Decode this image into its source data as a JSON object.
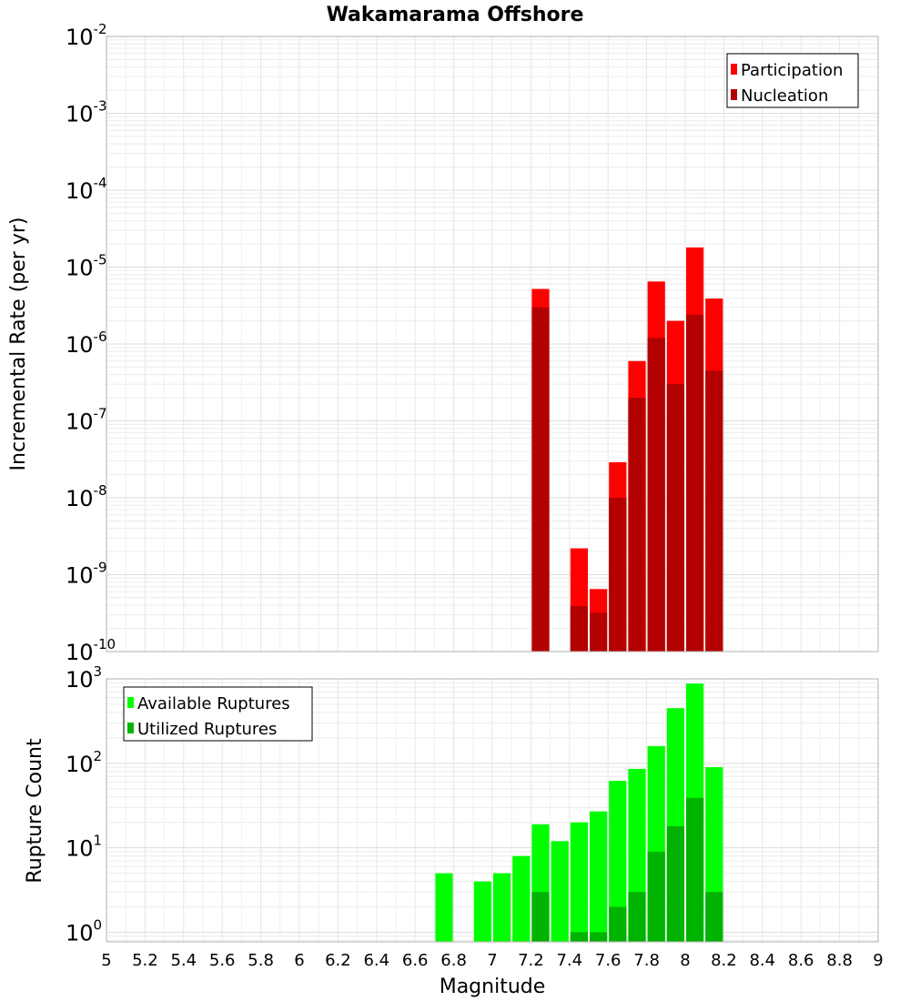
{
  "chart_data": [
    {
      "type": "bar",
      "title": "Wakamarama Offshore",
      "ylabel": "Incremental Rate (per yr)",
      "yscale": "log",
      "ylim": [
        1e-10,
        0.01
      ],
      "xlim": [
        5,
        9
      ],
      "grid": true,
      "legend_position": "top-right",
      "y_tick_labels": [
        {
          "base": "10",
          "exp": "-2"
        },
        {
          "base": "10",
          "exp": "-3"
        },
        {
          "base": "10",
          "exp": "-4"
        },
        {
          "base": "10",
          "exp": "-5"
        },
        {
          "base": "10",
          "exp": "-6"
        },
        {
          "base": "10",
          "exp": "-7"
        },
        {
          "base": "10",
          "exp": "-8"
        },
        {
          "base": "10",
          "exp": "-9"
        },
        {
          "base": "10",
          "exp": "-10"
        }
      ],
      "series": [
        {
          "name": "Participation",
          "color": "#ff0000",
          "x": [
            7.25,
            7.45,
            7.55,
            7.65,
            7.75,
            7.85,
            7.95,
            8.05,
            8.15
          ],
          "values": [
            5.2e-06,
            2.2e-09,
            6.5e-10,
            2.9e-08,
            6e-07,
            6.5e-06,
            2e-06,
            1.8e-05,
            3.9e-06
          ]
        },
        {
          "name": "Nucleation",
          "color": "#b30000",
          "x": [
            7.25,
            7.45,
            7.55,
            7.65,
            7.75,
            7.85,
            7.95,
            8.05,
            8.15
          ],
          "values": [
            3e-06,
            3.9e-10,
            3.2e-10,
            1e-08,
            2e-07,
            1.2e-06,
            3e-07,
            2.4e-06,
            4.5e-07
          ]
        }
      ]
    },
    {
      "type": "bar",
      "xlabel": "Magnitude",
      "ylabel": "Rupture Count",
      "yscale": "log",
      "ylim": [
        0.77,
        1000
      ],
      "xlim": [
        5,
        9
      ],
      "grid": true,
      "legend_position": "top-left",
      "x_tick_labels": [
        "5",
        "5.2",
        "5.4",
        "5.6",
        "5.8",
        "6",
        "6.2",
        "6.4",
        "6.6",
        "6.8",
        "7",
        "7.2",
        "7.4",
        "7.6",
        "7.8",
        "8",
        "8.2",
        "8.4",
        "8.6",
        "8.8",
        "9"
      ],
      "y_tick_labels": [
        {
          "base": "10",
          "exp": "3"
        },
        {
          "base": "10",
          "exp": "2"
        },
        {
          "base": "10",
          "exp": "1"
        },
        {
          "base": "10",
          "exp": "0"
        }
      ],
      "series": [
        {
          "name": "Available Ruptures",
          "color": "#00ff00",
          "x": [
            6.75,
            6.95,
            7.05,
            7.15,
            7.25,
            7.35,
            7.45,
            7.55,
            7.65,
            7.75,
            7.85,
            7.95,
            8.05,
            8.15
          ],
          "values": [
            5,
            4,
            5,
            8,
            19,
            12,
            20,
            27,
            62,
            86,
            160,
            450,
            880,
            90
          ]
        },
        {
          "name": "Utilized Ruptures",
          "color": "#00b300",
          "x": [
            7.25,
            7.45,
            7.55,
            7.65,
            7.75,
            7.85,
            7.95,
            8.05,
            8.15
          ],
          "values": [
            3,
            1,
            1,
            2,
            3,
            9,
            18,
            39,
            3
          ]
        }
      ]
    }
  ]
}
